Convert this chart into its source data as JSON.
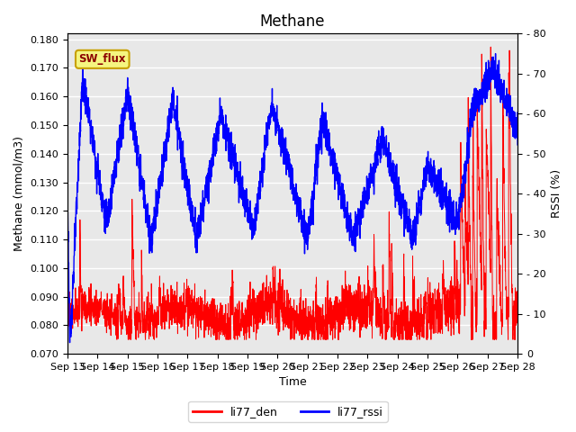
{
  "title": "Methane",
  "xlabel": "Time",
  "ylabel_left": "Methane (mmol/m3)",
  "ylabel_right": "RSSI (%)",
  "ylim_left": [
    0.07,
    0.182
  ],
  "ylim_right": [
    0,
    80
  ],
  "yticks_left": [
    0.07,
    0.08,
    0.09,
    0.1,
    0.11,
    0.12,
    0.13,
    0.14,
    0.15,
    0.16,
    0.17,
    0.18
  ],
  "yticks_right": [
    0,
    10,
    20,
    30,
    40,
    50,
    60,
    70,
    80
  ],
  "xtick_labels": [
    "Sep 13",
    "Sep 14",
    "Sep 15",
    "Sep 16",
    "Sep 17",
    "Sep 18",
    "Sep 19",
    "Sep 20",
    "Sep 21",
    "Sep 22",
    "Sep 23",
    "Sep 24",
    "Sep 25",
    "Sep 26",
    "Sep 27",
    "Sep 28"
  ],
  "legend_labels": [
    "li77_den",
    "li77_rssi"
  ],
  "legend_colors": [
    "red",
    "blue"
  ],
  "sw_flux_label": "SW_flux",
  "sw_flux_bg": "#f5f580",
  "sw_flux_border": "#c8a000",
  "line_color_den": "red",
  "line_color_rssi": "blue",
  "background_color": "#e8e8e8",
  "grid_color": "white",
  "title_fontsize": 12,
  "axis_label_fontsize": 9,
  "tick_fontsize": 8
}
